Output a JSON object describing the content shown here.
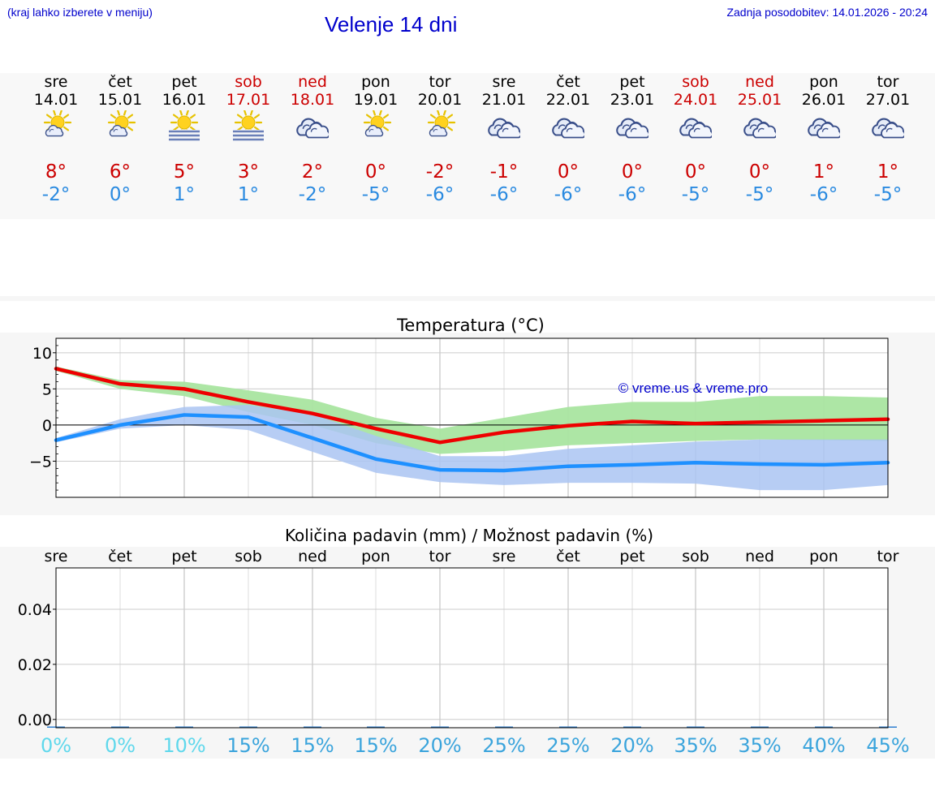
{
  "header": {
    "hint": "(kraj lahko izberete v meniju)",
    "title": "Velenje 14 dni",
    "updated": "Zadnja posodobitev: 14.01.2026 - 20:24"
  },
  "forecast": [
    {
      "day": "sre",
      "date": "14.01",
      "icon": "partly-cloudy-sun-icon",
      "max": "8°",
      "min": "-2°",
      "weekend": false
    },
    {
      "day": "čet",
      "date": "15.01",
      "icon": "partly-cloudy-sun-icon",
      "max": "6°",
      "min": "0°",
      "weekend": false
    },
    {
      "day": "pet",
      "date": "16.01",
      "icon": "sun-fog-icon",
      "max": "5°",
      "min": "1°",
      "weekend": false
    },
    {
      "day": "sob",
      "date": "17.01",
      "icon": "sun-fog-icon",
      "max": "3°",
      "min": "1°",
      "weekend": true
    },
    {
      "day": "ned",
      "date": "18.01",
      "icon": "cloudy-icon",
      "max": "2°",
      "min": "-2°",
      "weekend": true
    },
    {
      "day": "pon",
      "date": "19.01",
      "icon": "partly-cloudy-sun-icon",
      "max": "0°",
      "min": "-5°",
      "weekend": false
    },
    {
      "day": "tor",
      "date": "20.01",
      "icon": "partly-cloudy-sun-icon",
      "max": "-2°",
      "min": "-6°",
      "weekend": false
    },
    {
      "day": "sre",
      "date": "21.01",
      "icon": "cloudy-icon",
      "max": "-1°",
      "min": "-6°",
      "weekend": false
    },
    {
      "day": "čet",
      "date": "22.01",
      "icon": "cloudy-icon",
      "max": "0°",
      "min": "-6°",
      "weekend": false
    },
    {
      "day": "pet",
      "date": "23.01",
      "icon": "cloudy-icon",
      "max": "0°",
      "min": "-6°",
      "weekend": false
    },
    {
      "day": "sob",
      "date": "24.01",
      "icon": "cloudy-icon",
      "max": "0°",
      "min": "-5°",
      "weekend": true
    },
    {
      "day": "ned",
      "date": "25.01",
      "icon": "cloudy-icon",
      "max": "0°",
      "min": "-5°",
      "weekend": true
    },
    {
      "day": "pon",
      "date": "26.01",
      "icon": "cloudy-icon",
      "max": "1°",
      "min": "-6°",
      "weekend": false
    },
    {
      "day": "tor",
      "date": "27.01",
      "icon": "cloudy-icon",
      "max": "1°",
      "min": "-5°",
      "weekend": false
    }
  ],
  "colors": {
    "max_line": "#ee0000",
    "min_line": "#1e90ff",
    "max_band": "#a9e5a0",
    "min_band": "#aac4f2",
    "overlap_band": "#7cc0a0",
    "max_text": "#cc0000",
    "min_text": "#2a8ae0"
  },
  "chart_data": [
    {
      "type": "line",
      "title": "Temperatura (°C)",
      "watermark": "© vreme.us & vreme.pro",
      "xlabel": "",
      "ylabel": "",
      "categories": [
        "14.01",
        "15.01",
        "16.01",
        "17.01",
        "18.01",
        "19.01",
        "20.01",
        "21.01",
        "22.01",
        "23.01",
        "24.01",
        "25.01",
        "26.01",
        "27.01"
      ],
      "ylim": [
        -10,
        12
      ],
      "yticks": [
        10,
        5,
        0,
        -5
      ],
      "ytick_labels": [
        "10",
        "5",
        "0",
        "−5"
      ],
      "series": [
        {
          "name": "max",
          "values": [
            7.8,
            5.7,
            5.0,
            3.2,
            1.6,
            -0.5,
            -2.4,
            -1.0,
            -0.1,
            0.5,
            0.2,
            0.4,
            0.6,
            0.8
          ]
        },
        {
          "name": "min",
          "values": [
            -2.1,
            0.0,
            1.4,
            1.1,
            -1.8,
            -4.7,
            -6.2,
            -6.3,
            -5.7,
            -5.5,
            -5.2,
            -5.4,
            -5.5,
            -5.2
          ]
        },
        {
          "name": "max_range_low",
          "values": [
            7.5,
            5.0,
            4.0,
            1.8,
            0.0,
            -2.5,
            -4.0,
            -3.6,
            -2.8,
            -2.5,
            -2.2,
            -2.0,
            -2.1,
            -2.2
          ]
        },
        {
          "name": "max_range_high",
          "values": [
            8.1,
            6.2,
            6.0,
            4.8,
            3.5,
            1.0,
            -0.5,
            1.0,
            2.5,
            3.2,
            3.2,
            4.0,
            4.0,
            3.8
          ]
        },
        {
          "name": "min_range_low",
          "values": [
            -2.4,
            -0.5,
            0.0,
            -0.7,
            -3.7,
            -6.6,
            -7.9,
            -8.3,
            -8.0,
            -8.0,
            -8.1,
            -9.0,
            -9.0,
            -8.3
          ]
        },
        {
          "name": "min_range_high",
          "values": [
            -1.8,
            0.8,
            2.5,
            2.8,
            1.5,
            -1.5,
            -4.3,
            -4.3,
            -3.3,
            -2.8,
            -2.3,
            -2.0,
            -2.0,
            -2.0
          ]
        }
      ]
    },
    {
      "type": "bar",
      "title": "Količina padavin (mm) / Možnost padavin (%)",
      "categories": [
        "sre",
        "čet",
        "pet",
        "sob",
        "ned",
        "pon",
        "tor",
        "sre",
        "čet",
        "pet",
        "sob",
        "ned",
        "pon",
        "tor"
      ],
      "ylim": [
        -0.003,
        0.055
      ],
      "yticks": [
        0.04,
        0.02,
        0.0
      ],
      "ytick_labels": [
        "0.04",
        "0.02",
        "0.00"
      ],
      "values": [
        0,
        0,
        0,
        0,
        0,
        0,
        0,
        0,
        0,
        0,
        0,
        0,
        0,
        0
      ],
      "chance_labels": [
        "0%",
        "0%",
        "10%",
        "15%",
        "15%",
        "15%",
        "20%",
        "25%",
        "25%",
        "20%",
        "35%",
        "35%",
        "40%",
        "45%"
      ],
      "chance_colors": [
        "#5fd8ec",
        "#5fd8ec",
        "#5fd8ec",
        "#3aa4dc",
        "#3aa4dc",
        "#3aa4dc",
        "#3aa4dc",
        "#3aa4dc",
        "#3aa4dc",
        "#3aa4dc",
        "#3aa4dc",
        "#3aa4dc",
        "#3aa4dc",
        "#3aa4dc"
      ]
    }
  ]
}
